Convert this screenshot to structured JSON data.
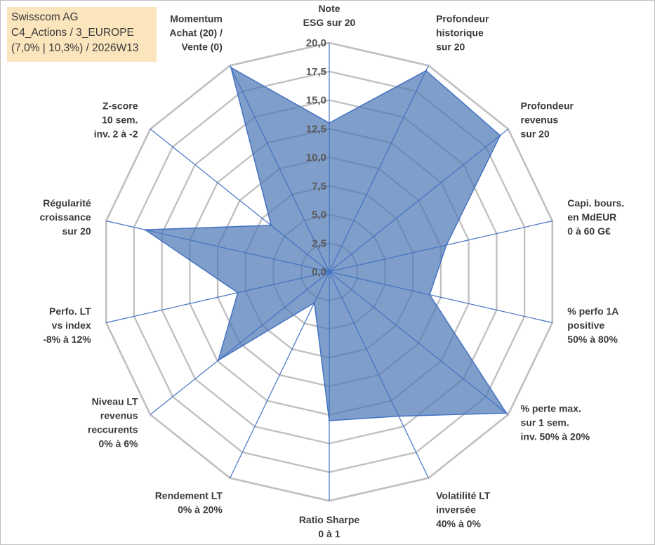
{
  "info_box": {
    "line1": "Swisscom AG",
    "line2": "C4_Actions / 3_EUROPE",
    "line3": "(7,0% | 10,3%) / 2026W13"
  },
  "chart_data": {
    "type": "radar",
    "rmin": 0,
    "rmax": 20,
    "ticks": [
      "0,0",
      "2,5",
      "5,0",
      "7,5",
      "10,0",
      "12,5",
      "15,0",
      "17,5",
      "20,0"
    ],
    "grid": true,
    "categories": [
      [
        "Note",
        "ESG sur 20"
      ],
      [
        "Profondeur",
        "historique",
        "sur 20"
      ],
      [
        "Profondeur",
        "revenus",
        "sur 20"
      ],
      [
        "Capi. bours.",
        "en MdEUR",
        "0 à 60 G€"
      ],
      [
        "% perfo 1A",
        "positive",
        "50% à 80%"
      ],
      [
        "% perte max.",
        "sur 1 sem.",
        "inv. 50% à 20%"
      ],
      [
        "Volatilité LT",
        "inversée",
        "40% à 0%"
      ],
      [
        "Ratio Sharpe",
        "0 à 1"
      ],
      [
        "Rendement LT",
        "0% à 20%"
      ],
      [
        "Niveau LT",
        "revenus",
        "reccurents",
        "0% à 6%"
      ],
      [
        "Perfo. LT",
        "vs index",
        "-8% à 12%"
      ],
      [
        "Régularité",
        "croissance",
        "sur 20"
      ],
      [
        "Z-score",
        "10 sem.",
        "inv. 2 à -2"
      ],
      [
        "Momentum",
        "Achat (20) /",
        "Vente (0)"
      ]
    ],
    "series": [
      {
        "values": [
          13,
          19.5,
          19.1,
          10.5,
          9.0,
          19.8,
          14.0,
          13.0,
          3.0,
          12.4,
          8.2,
          16.5,
          6.5,
          19.8
        ],
        "color": "#4d79b4"
      }
    ],
    "colors": {
      "fill": "#4d79b4",
      "stroke": "#4472c4",
      "grid": "#bfbfbf"
    }
  }
}
